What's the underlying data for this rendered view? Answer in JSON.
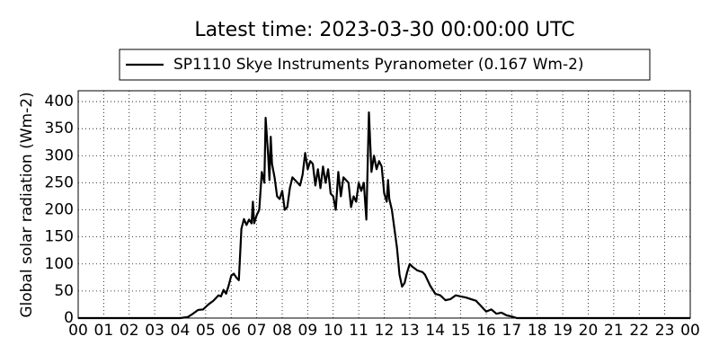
{
  "chart_data": {
    "type": "line",
    "title": "Latest time: 2023-03-30 00:00:00 UTC",
    "y_label": "Global solar radiation (Wm-2)",
    "grid": true,
    "legend": "top",
    "xlim": [
      0,
      24
    ],
    "ylim": [
      0,
      420
    ],
    "xticks": [
      {
        "value": 0,
        "label": "00"
      },
      {
        "value": 1,
        "label": "01"
      },
      {
        "value": 2,
        "label": "02"
      },
      {
        "value": 3,
        "label": "03"
      },
      {
        "value": 4,
        "label": "04"
      },
      {
        "value": 5,
        "label": "05"
      },
      {
        "value": 6,
        "label": "06"
      },
      {
        "value": 7,
        "label": "07"
      },
      {
        "value": 8,
        "label": "08"
      },
      {
        "value": 9,
        "label": "09"
      },
      {
        "value": 10,
        "label": "10"
      },
      {
        "value": 11,
        "label": "11"
      },
      {
        "value": 12,
        "label": "12"
      },
      {
        "value": 13,
        "label": "13"
      },
      {
        "value": 14,
        "label": "14"
      },
      {
        "value": 15,
        "label": "15"
      },
      {
        "value": 16,
        "label": "16"
      },
      {
        "value": 17,
        "label": "17"
      },
      {
        "value": 18,
        "label": "18"
      },
      {
        "value": 19,
        "label": "19"
      },
      {
        "value": 20,
        "label": "20"
      },
      {
        "value": 21,
        "label": "21"
      },
      {
        "value": 22,
        "label": "22"
      },
      {
        "value": 23,
        "label": "23"
      },
      {
        "value": 24,
        "label": "00"
      }
    ],
    "yticks": [
      0,
      50,
      100,
      150,
      200,
      250,
      300,
      350,
      400
    ],
    "x": [
      0,
      4.0,
      4.3,
      4.5,
      4.7,
      4.9,
      5.1,
      5.3,
      5.5,
      5.6,
      5.7,
      5.8,
      5.9,
      6.0,
      6.1,
      6.2,
      6.3,
      6.4,
      6.5,
      6.6,
      6.7,
      6.8,
      6.85,
      6.9,
      7.0,
      7.1,
      7.2,
      7.3,
      7.35,
      7.45,
      7.5,
      7.55,
      7.6,
      7.7,
      7.8,
      7.9,
      8.0,
      8.1,
      8.2,
      8.3,
      8.4,
      8.5,
      8.6,
      8.7,
      8.8,
      8.9,
      9.0,
      9.1,
      9.2,
      9.3,
      9.4,
      9.5,
      9.6,
      9.7,
      9.8,
      9.9,
      10.0,
      10.1,
      10.2,
      10.3,
      10.4,
      10.6,
      10.7,
      10.8,
      10.9,
      11.0,
      11.1,
      11.2,
      11.3,
      11.4,
      11.5,
      11.6,
      11.7,
      11.8,
      11.9,
      12.0,
      12.1,
      12.15,
      12.2,
      12.3,
      12.5,
      12.6,
      12.7,
      12.8,
      12.9,
      13.0,
      13.1,
      13.3,
      13.5,
      13.6,
      13.8,
      14.0,
      14.2,
      14.4,
      14.6,
      14.8,
      15.0,
      15.2,
      15.4,
      15.6,
      15.8,
      16.0,
      16.2,
      16.4,
      16.6,
      16.8,
      17.0,
      17.2,
      24
    ],
    "series": [
      {
        "name": "SP1110 Skye Instruments Pyranometer (0.167 Wm-2)",
        "color": "#000000",
        "values": [
          0,
          0,
          2,
          8,
          15,
          16,
          25,
          32,
          42,
          40,
          52,
          45,
          60,
          78,
          82,
          75,
          70,
          165,
          183,
          172,
          182,
          175,
          215,
          175,
          190,
          200,
          270,
          250,
          370,
          300,
          255,
          335,
          285,
          260,
          225,
          220,
          235,
          200,
          205,
          240,
          260,
          255,
          250,
          245,
          265,
          305,
          275,
          290,
          285,
          245,
          275,
          240,
          280,
          250,
          275,
          230,
          225,
          200,
          270,
          225,
          260,
          250,
          205,
          225,
          215,
          250,
          235,
          250,
          182,
          380,
          270,
          300,
          275,
          290,
          280,
          230,
          215,
          255,
          220,
          200,
          130,
          80,
          58,
          65,
          85,
          100,
          95,
          88,
          85,
          80,
          60,
          45,
          42,
          33,
          35,
          42,
          40,
          38,
          35,
          32,
          22,
          12,
          16,
          8,
          10,
          5,
          3,
          0,
          0
        ]
      }
    ]
  }
}
